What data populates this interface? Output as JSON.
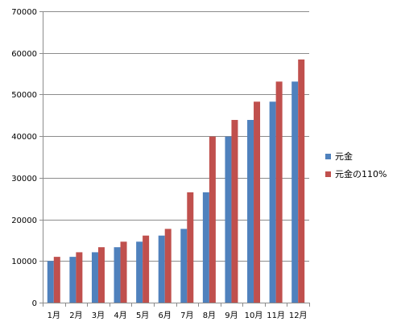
{
  "chart_data": {
    "type": "bar",
    "title": "",
    "xlabel": "",
    "ylabel": "",
    "categories": [
      "1月",
      "2月",
      "3月",
      "4月",
      "5月",
      "6月",
      "7月",
      "8月",
      "9月",
      "10月",
      "11月",
      "12月"
    ],
    "series": [
      {
        "name": "元金",
        "color": "#4F81BD",
        "values": [
          10000,
          11000,
          12100,
          13310,
          14641,
          16105,
          17716,
          26500,
          39900,
          43890,
          48279,
          53107
        ]
      },
      {
        "name": "元金の110%",
        "color": "#C0504D",
        "values": [
          11000,
          12100,
          13310,
          14641,
          16105,
          17716,
          26500,
          39900,
          43890,
          48279,
          53107,
          58418
        ]
      }
    ],
    "ylim": [
      0,
      70000
    ],
    "yticks": [
      0,
      10000,
      20000,
      30000,
      40000,
      50000,
      60000,
      70000
    ],
    "grid": true,
    "legend": "right"
  },
  "colors": {
    "gridline": "#8c8c8c",
    "axis": "#8c8c8c"
  }
}
